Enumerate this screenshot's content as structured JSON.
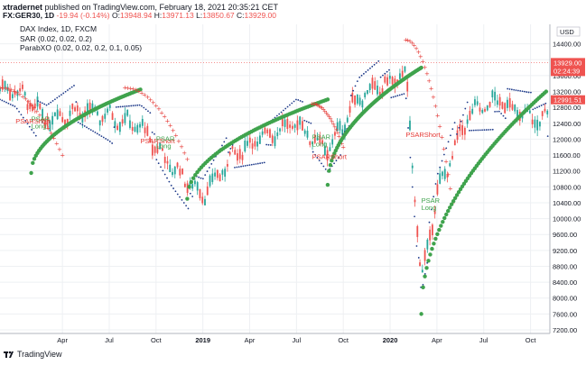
{
  "publish": {
    "author": "xtradernet",
    "text": "published on TradingView.com, February 18, 2021 20:35:21 CET"
  },
  "quote": {
    "symbol": "FX:GER30, 1D",
    "change": "-19.94 (-0.14%)",
    "open_label": "O:",
    "open": "13948.94",
    "high_label": "H:",
    "high": "13971.13",
    "low_label": "L:",
    "low": "13850.67",
    "close_label": "C:",
    "close": "13929.00"
  },
  "legend": {
    "line1": "DAX Index, 1D, FXCM",
    "line2": "SAR (0.02, 0.02, 0.2)",
    "line3": "ParabXO (0.02, 0.02, 0.2, 0.1, 0.05)"
  },
  "footer": {
    "brand": "TradingView"
  },
  "colors": {
    "up": "#26a69a",
    "down": "#ef5350",
    "sar": "#1e3a8a",
    "trend_green": "#3fa34d",
    "trend_red": "#e53935",
    "price_badge": "#ef5350",
    "level_badge": "#ef5350"
  },
  "chart_data": {
    "type": "line",
    "title": "DAX Index, 1D, FXCM",
    "y_unit": "USD",
    "ylim": [
      7200,
      14800
    ],
    "y_ticks": [
      "14400.00",
      "14000.00",
      "13600.00",
      "13200.00",
      "12800.00",
      "12400.00",
      "12000.00",
      "11600.00",
      "11200.00",
      "10800.00",
      "10400.00",
      "10000.00",
      "9600.00",
      "9200.00",
      "8800.00",
      "8400.00",
      "8000.00",
      "7600.00",
      "7200.00"
    ],
    "x_ticks": [
      "Apr",
      "Jul",
      "Oct",
      "2019",
      "Apr",
      "Jul",
      "Oct",
      "2020",
      "Apr",
      "Jul",
      "Oct"
    ],
    "x": [
      "2018-01",
      "2018-03",
      "2018-05",
      "2018-07",
      "2018-09",
      "2018-11",
      "2019-01",
      "2019-03",
      "2019-05",
      "2019-07",
      "2019-09",
      "2019-11",
      "2020-01",
      "2020-02",
      "2020-03",
      "2020-04",
      "2020-06",
      "2020-08",
      "2020-10"
    ],
    "series": [
      {
        "values": [
          13250,
          12500,
          12700,
          12600,
          12300,
          11300,
          10600,
          11600,
          12100,
          12400,
          11700,
          13100,
          13400,
          13700,
          8400,
          10600,
          12600,
          13000,
          12500
        ]
      }
    ],
    "price_labels": {
      "last": "13929.00",
      "countdown": "02:24:39",
      "level": "12991.51"
    },
    "annotations": [
      {
        "label": "PSAR",
        "sub": "Long",
        "kind": "long",
        "date": "2018-02",
        "price": 12450
      },
      {
        "label": "PSARShort",
        "kind": "short",
        "date": "2018-01",
        "price": 12400
      },
      {
        "label": "PSARShort",
        "kind": "short",
        "date": "2018-09",
        "price": 11900
      },
      {
        "label": "PSAR",
        "sub": "Long",
        "kind": "long",
        "date": "2018-10",
        "price": 11950
      },
      {
        "label": "PSAR",
        "sub": "Long",
        "kind": "long",
        "date": "2019-08",
        "price": 12000
      },
      {
        "label": "PSARShort",
        "kind": "short",
        "date": "2019-08",
        "price": 11500
      },
      {
        "label": "PSARShort",
        "kind": "short",
        "date": "2020-02",
        "price": 12050
      },
      {
        "label": "PSAR",
        "sub": "Long",
        "kind": "long",
        "date": "2020-03",
        "price": 10400
      }
    ],
    "trend_arcs": [
      {
        "color": "green",
        "start": "2018-02",
        "end": "2018-08",
        "from": 11150,
        "to": 13250
      },
      {
        "color": "red",
        "start": "2017-12",
        "end": "2018-03",
        "from": 13300,
        "to": 11600
      },
      {
        "color": "red",
        "start": "2018-08",
        "end": "2018-11",
        "from": 13300,
        "to": 11500
      },
      {
        "color": "green",
        "start": "2018-12",
        "end": "2019-08",
        "from": 10500,
        "to": 13000
      },
      {
        "color": "red",
        "start": "2019-08",
        "end": "2019-09",
        "from": 12900,
        "to": 11800
      },
      {
        "color": "green",
        "start": "2019-09",
        "end": "2020-02",
        "from": 10850,
        "to": 13800
      },
      {
        "color": "red",
        "start": "2020-02",
        "end": "2020-04",
        "from": 14500,
        "to": 10400
      },
      {
        "color": "green",
        "start": "2020-03",
        "end": "2020-10",
        "from": 7600,
        "to": 13200
      }
    ]
  }
}
